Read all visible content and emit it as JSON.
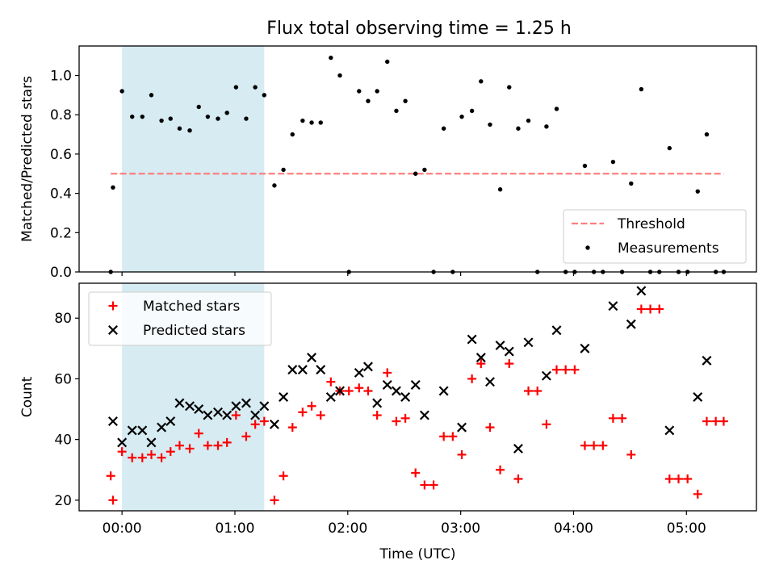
{
  "title": "Flux total observing time = 1.25 h",
  "chart_data": [
    {
      "type": "scatter",
      "ylabel": "Matched/Predicted stars",
      "xlim_hours": [
        -0.38,
        5.62
      ],
      "ylim": [
        0,
        1.15
      ],
      "yticks": [
        0.0,
        0.2,
        0.4,
        0.6,
        0.8,
        1.0
      ],
      "ytick_labels": [
        "0.0",
        "0.2",
        "0.4",
        "0.6",
        "0.8",
        "1.0"
      ],
      "shaded_span_hours": [
        0.0,
        1.26
      ],
      "threshold": {
        "name": "Threshold",
        "x_hours": [
          -0.1,
          5.33
        ],
        "y": 0.5,
        "color": "#ff7f7f"
      },
      "legend": {
        "position": "lower-right",
        "entries": [
          "Threshold",
          "Measurements"
        ]
      },
      "series": [
        {
          "name": "Measurements",
          "marker": "dot",
          "color": "#000000",
          "x_hours": [
            -0.1,
            -0.08,
            0.0,
            0.09,
            0.18,
            0.26,
            0.35,
            0.43,
            0.51,
            0.6,
            0.68,
            0.76,
            0.85,
            0.93,
            1.01,
            1.1,
            1.18,
            1.26,
            1.35,
            1.43,
            1.51,
            1.6,
            1.68,
            1.76,
            1.85,
            1.93,
            2.01,
            2.1,
            2.18,
            2.26,
            2.35,
            2.43,
            2.51,
            2.6,
            2.68,
            2.76,
            2.85,
            2.93,
            3.01,
            3.1,
            3.18,
            3.26,
            3.35,
            3.43,
            3.51,
            3.6,
            3.68,
            3.76,
            3.85,
            3.93,
            4.01,
            4.1,
            4.18,
            4.26,
            4.35,
            4.43,
            4.51,
            4.6,
            4.68,
            4.76,
            4.85,
            4.93,
            5.01,
            5.1,
            5.18,
            5.26,
            5.33
          ],
          "y": [
            0.0,
            0.43,
            0.92,
            0.79,
            0.79,
            0.9,
            0.77,
            0.78,
            0.73,
            0.72,
            0.84,
            0.79,
            0.78,
            0.81,
            0.94,
            0.78,
            0.94,
            0.9,
            0.44,
            0.52,
            0.7,
            0.77,
            0.76,
            0.76,
            1.09,
            1.0,
            0.0,
            0.92,
            0.87,
            0.92,
            1.07,
            0.82,
            0.87,
            0.5,
            0.52,
            0.0,
            0.73,
            0.0,
            0.79,
            0.82,
            0.97,
            0.75,
            0.42,
            0.94,
            0.73,
            0.77,
            0.0,
            0.74,
            0.83,
            0.0,
            0.0,
            0.54,
            0.0,
            0.0,
            0.56,
            0.0,
            0.45,
            0.93,
            0.0,
            0.0,
            0.63,
            0.0,
            0.0,
            0.41,
            0.7,
            0.0,
            0.0
          ]
        }
      ]
    },
    {
      "type": "scatter",
      "xlabel": "Time (UTC)",
      "ylabel": "Count",
      "xlim_hours": [
        -0.38,
        5.62
      ],
      "ylim": [
        16.5,
        91.5
      ],
      "yticks": [
        20,
        40,
        60,
        80
      ],
      "ytick_labels": [
        "20",
        "40",
        "60",
        "80"
      ],
      "xticks_hours": [
        0,
        1,
        2,
        3,
        4,
        5
      ],
      "xtick_labels": [
        "00:00",
        "01:00",
        "02:00",
        "03:00",
        "04:00",
        "05:00"
      ],
      "shaded_span_hours": [
        0.0,
        1.26
      ],
      "legend": {
        "position": "upper-left",
        "entries": [
          "Matched stars",
          "Predicted stars"
        ]
      },
      "series": [
        {
          "name": "Matched stars",
          "marker": "plus",
          "color": "#ff0000",
          "x_hours": [
            -0.1,
            -0.08,
            0.0,
            0.09,
            0.18,
            0.26,
            0.35,
            0.43,
            0.51,
            0.6,
            0.68,
            0.76,
            0.85,
            0.93,
            1.01,
            1.1,
            1.18,
            1.26,
            1.35,
            1.43,
            1.51,
            1.6,
            1.68,
            1.76,
            1.85,
            1.93,
            2.01,
            2.1,
            2.18,
            2.26,
            2.35,
            2.43,
            2.51,
            2.6,
            2.68,
            2.76,
            2.85,
            2.93,
            3.01,
            3.1,
            3.18,
            3.26,
            3.35,
            3.43,
            3.51,
            3.6,
            3.68,
            3.76,
            3.85,
            3.93,
            4.01,
            4.1,
            4.18,
            4.26,
            4.35,
            4.43,
            4.51,
            4.6,
            4.68,
            4.76,
            4.85,
            4.93,
            5.01,
            5.1,
            5.18,
            5.26,
            5.33
          ],
          "y": [
            28,
            20,
            36,
            34,
            34,
            35,
            34,
            36,
            38,
            37,
            42,
            38,
            38,
            39,
            48,
            41,
            45,
            46,
            20,
            28,
            44,
            49,
            51,
            48,
            59,
            56,
            56,
            57,
            56,
            48,
            62,
            46,
            47,
            29,
            25,
            25,
            41,
            41,
            35,
            60,
            65,
            44,
            30,
            65,
            27,
            56,
            56,
            45,
            63,
            63,
            63,
            38,
            38,
            38,
            47,
            47,
            35,
            83,
            83,
            83,
            27,
            27,
            27,
            22,
            46,
            46,
            46
          ]
        },
        {
          "name": "Predicted stars",
          "marker": "x",
          "color": "#000000",
          "x_hours": [
            -0.08,
            0.0,
            0.09,
            0.18,
            0.26,
            0.35,
            0.43,
            0.51,
            0.6,
            0.68,
            0.76,
            0.85,
            0.93,
            1.01,
            1.1,
            1.18,
            1.26,
            1.35,
            1.43,
            1.51,
            1.6,
            1.68,
            1.76,
            1.85,
            1.93,
            2.1,
            2.18,
            2.26,
            2.35,
            2.43,
            2.51,
            2.6,
            2.68,
            2.85,
            3.01,
            3.1,
            3.18,
            3.26,
            3.35,
            3.43,
            3.51,
            3.6,
            3.76,
            3.85,
            4.1,
            4.35,
            4.51,
            4.6,
            4.85,
            5.1,
            5.18
          ],
          "y": [
            46,
            39,
            43,
            43,
            39,
            44,
            46,
            52,
            51,
            50,
            48,
            49,
            48,
            51,
            52,
            48,
            51,
            45,
            54,
            63,
            63,
            67,
            63,
            54,
            56,
            62,
            64,
            52,
            58,
            56,
            54,
            58,
            48,
            56,
            44,
            73,
            67,
            59,
            71,
            69,
            37,
            72,
            61,
            76,
            70,
            84,
            78,
            89,
            43,
            54,
            66
          ]
        }
      ]
    }
  ]
}
